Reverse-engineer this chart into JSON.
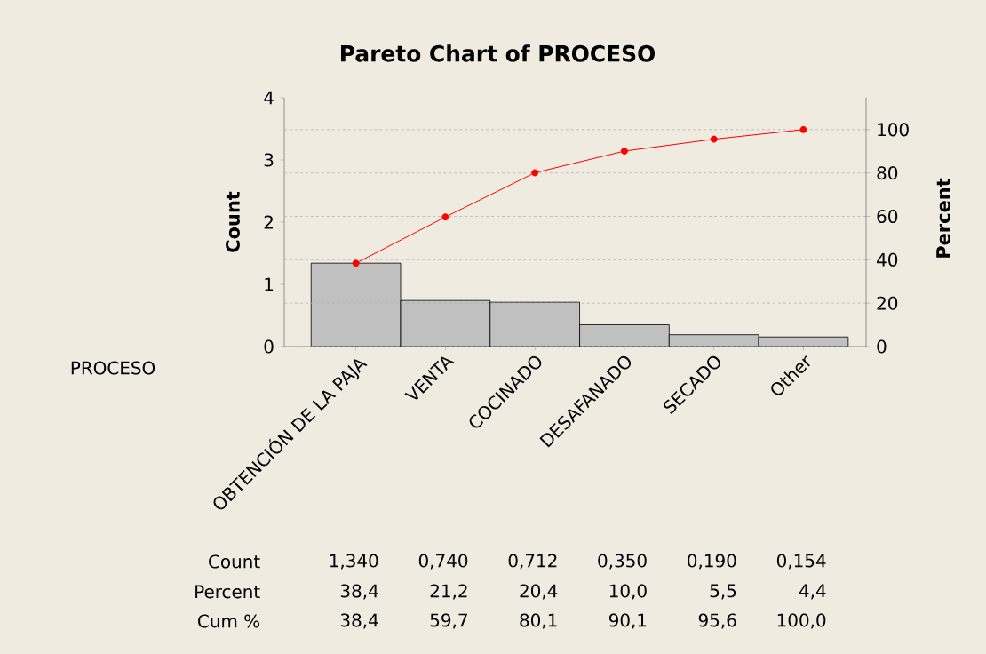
{
  "chart_data": {
    "type": "bar",
    "title": "Pareto Chart of PROCESO",
    "xlabel": "PROCESO",
    "ylabel": "Count",
    "y2label": "Percent",
    "categories": [
      "OBTENCIÓN DE LA PAJA",
      "VENTA",
      "COCINADO",
      "DESAFANADO",
      "SECADO",
      "Other"
    ],
    "series": [
      {
        "color": "#c0c0c0",
        "values": [
          1.34,
          0.74,
          0.712,
          0.35,
          0.19,
          0.154
        ],
        "value_labels": [
          "1,340",
          "0,740",
          "0,712",
          "0,350",
          "0,190",
          "0,154"
        ]
      },
      {
        "type": "line",
        "axis": "y2",
        "color": "#ff0000",
        "marker": "circle",
        "values": [
          38.4,
          59.7,
          80.1,
          90.1,
          95.6,
          100.0
        ],
        "value_labels": [
          "38,4",
          "59,7",
          "80,1",
          "90,1",
          "95,6",
          "100,0"
        ]
      }
    ],
    "annotations": [
      "Count",
      "Percent",
      "Cum %",
      "38,4",
      "21,2",
      "20,4",
      "10,0",
      "5,5",
      "4,4"
    ],
    "ylim": [
      0,
      4
    ],
    "yticks": [
      0,
      1,
      2,
      3,
      4
    ],
    "y2lim": [
      0,
      114.7
    ],
    "y2ticks": [
      0,
      20,
      40,
      60,
      80,
      100
    ],
    "grid": "y2"
  }
}
